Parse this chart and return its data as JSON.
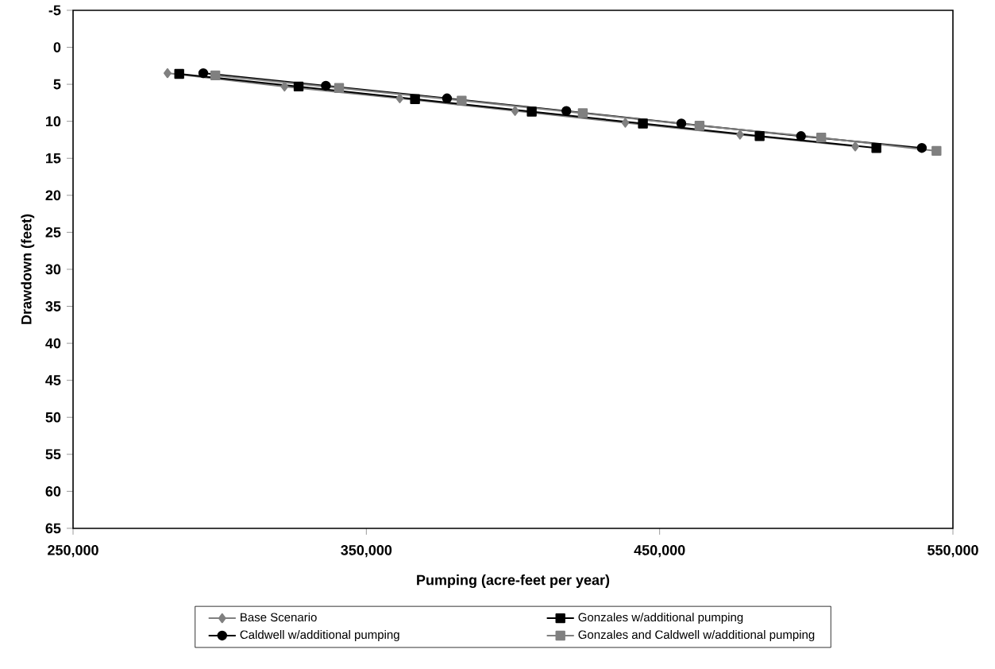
{
  "chart_data": {
    "type": "line",
    "xlabel": "Pumping (acre-feet per year)",
    "ylabel": "Drawdown (feet)",
    "xlim": [
      250000,
      550000
    ],
    "xticks": [
      {
        "value": 250000,
        "label": "250,000"
      },
      {
        "value": 350000,
        "label": "350,000"
      },
      {
        "value": 450000,
        "label": "450,000"
      },
      {
        "value": 550000,
        "label": "550,000"
      }
    ],
    "ylim": [
      65,
      -5
    ],
    "yticks": [
      -5,
      0,
      5,
      10,
      15,
      20,
      25,
      30,
      35,
      40,
      45,
      50,
      55,
      60,
      65
    ],
    "grid": false,
    "legend": "bottom",
    "line_style": "solid",
    "series": [
      {
        "name": "Base Scenario",
        "color": "#808080",
        "marker": "diamond",
        "x": [
          282200,
          322100,
          361400,
          400700,
          438300,
          477400,
          516700
        ],
        "values": [
          3.5,
          5.3,
          6.9,
          8.6,
          10.2,
          11.8,
          13.4
        ]
      },
      {
        "name": "Gonzales w/additional pumping",
        "color": "#000000",
        "marker": "square",
        "x": [
          286200,
          326900,
          366600,
          406400,
          444300,
          484100,
          523900
        ],
        "values": [
          3.6,
          5.3,
          7.0,
          8.7,
          10.3,
          12.0,
          13.6
        ]
      },
      {
        "name": "Caldwell w/additional pumping",
        "color": "#000000",
        "marker": "circle",
        "x": [
          294400,
          336200,
          377500,
          418200,
          457400,
          498200,
          539400
        ],
        "values": [
          3.5,
          5.2,
          6.9,
          8.6,
          10.3,
          12.0,
          13.6
        ]
      },
      {
        "name": "Gonzales and Caldwell w/additional pumping",
        "color": "#808080",
        "marker": "square",
        "x": [
          298500,
          340700,
          382500,
          423800,
          463600,
          505100,
          544400
        ],
        "values": [
          3.8,
          5.5,
          7.2,
          8.9,
          10.6,
          12.2,
          14.0
        ]
      }
    ]
  }
}
